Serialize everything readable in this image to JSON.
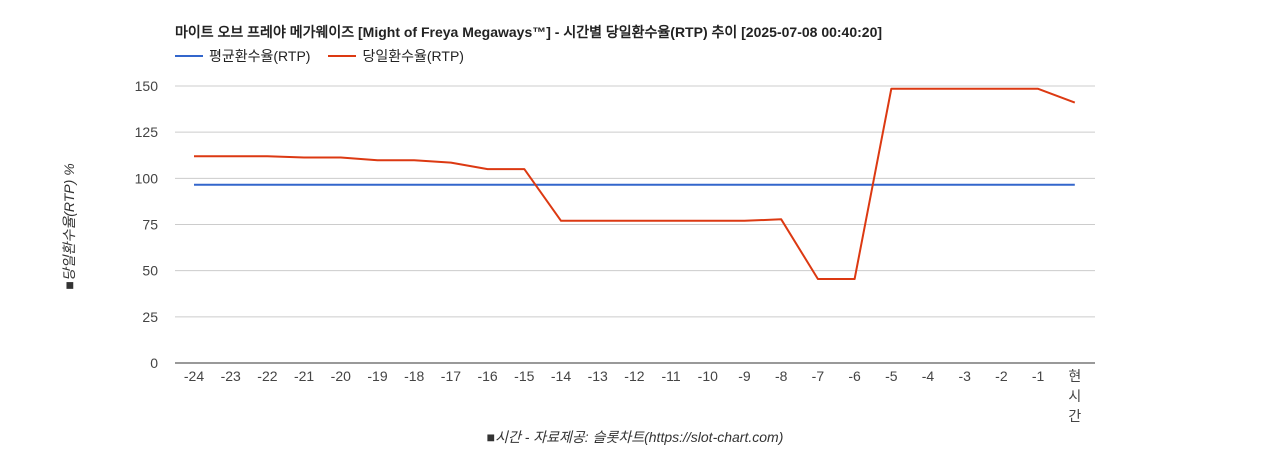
{
  "chart_data": {
    "type": "line",
    "title": "마이트 오브 프레야 메가웨이즈 [Might of Freya Megaways™] - 시간별 당일환수율(RTP) 추이 [2025-07-08 00:40:20]",
    "xlabel": "■시간 - 자료제공: 슬롯차트(https://slot-chart.com)",
    "ylabel": "■당일환수율(RTP) %",
    "categories": [
      "-24",
      "-23",
      "-22",
      "-21",
      "-20",
      "-19",
      "-18",
      "-17",
      "-16",
      "-15",
      "-14",
      "-13",
      "-12",
      "-11",
      "-10",
      "-9",
      "-8",
      "-7",
      "-6",
      "-5",
      "-4",
      "-3",
      "-2",
      "-1",
      "현시간"
    ],
    "ylim": [
      0,
      150
    ],
    "yticks": [
      0,
      25,
      50,
      75,
      100,
      125,
      150
    ],
    "grid": true,
    "legend_position": "top-left",
    "series": [
      {
        "name": "평균환수율(RTP)",
        "color": "#3366cc",
        "values": [
          96.5,
          96.5,
          96.5,
          96.5,
          96.5,
          96.5,
          96.5,
          96.5,
          96.5,
          96.5,
          96.5,
          96.5,
          96.5,
          96.5,
          96.5,
          96.5,
          96.5,
          96.5,
          96.5,
          96.5,
          96.5,
          96.5,
          96.5,
          96.5,
          96.5
        ]
      },
      {
        "name": "당일환수율(RTP)",
        "color": "#dc3912",
        "values": [
          112,
          112,
          112,
          111.3,
          111.3,
          109.8,
          109.8,
          108.5,
          105,
          105,
          77,
          77,
          77,
          77,
          77,
          77,
          77.8,
          45.5,
          45.5,
          148.5,
          148.5,
          148.5,
          148.5,
          148.5,
          141
        ]
      }
    ]
  }
}
